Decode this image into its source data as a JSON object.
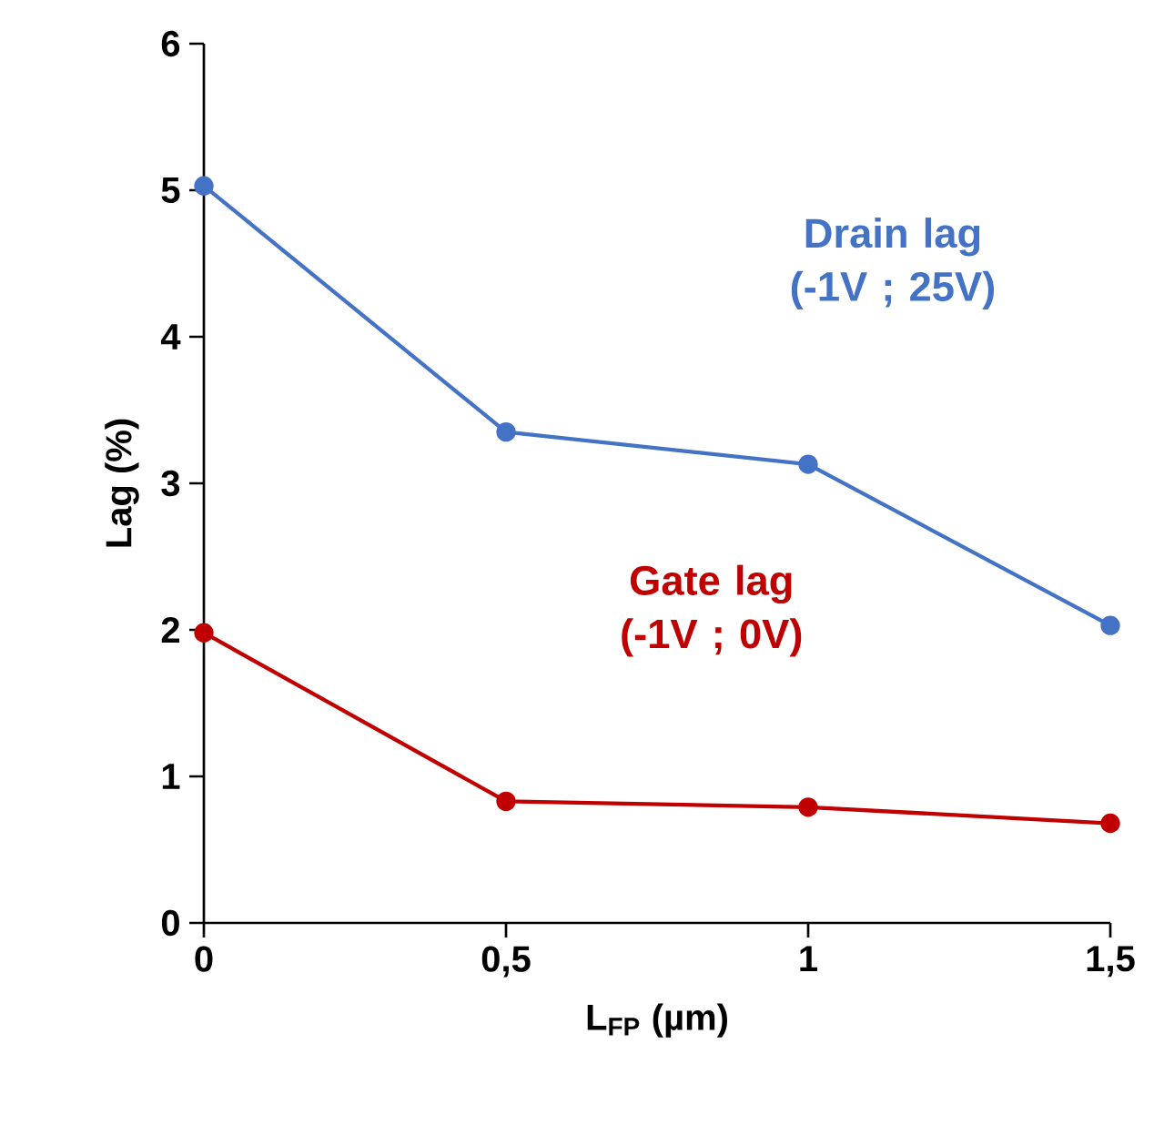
{
  "chart_data": {
    "type": "line",
    "xlabel": "L$_{FP}$ (µm)",
    "ylabel": "Lag (%)",
    "x": [
      0,
      0.5,
      1,
      1.5
    ],
    "series": [
      {
        "name": "Drain lag (-1V ; 25V)",
        "color": "#4472c4",
        "values": [
          5.03,
          3.35,
          3.13,
          2.03
        ]
      },
      {
        "name": "Gate lag (-1V ; 0V)",
        "color": "#c00000",
        "values": [
          1.98,
          0.83,
          0.79,
          0.68
        ]
      }
    ],
    "xlim": [
      0,
      1.5
    ],
    "ylim": [
      0,
      6
    ],
    "xticks": [
      0,
      {
        "value": 0.5,
        "label": "0,5"
      },
      1,
      {
        "value": 1.5,
        "label": "1,5"
      }
    ],
    "yticks": [
      0,
      1,
      2,
      3,
      4,
      5,
      6
    ],
    "marker": "circle",
    "line_style": "solid",
    "grid": false,
    "legend": false
  }
}
